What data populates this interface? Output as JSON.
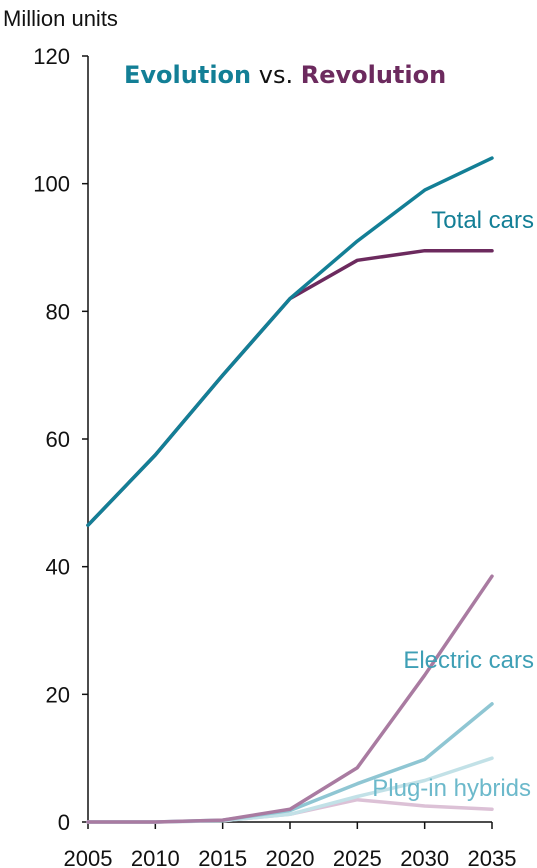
{
  "chart_data": {
    "type": "line",
    "title_parts": [
      {
        "text": "Evolution",
        "bold": true,
        "color": "#137f96"
      },
      {
        "text": " vs. ",
        "bold": false,
        "color": "#111111"
      },
      {
        "text": "Revolution",
        "bold": true,
        "color": "#6c2a5e"
      }
    ],
    "ylabel": "Million units",
    "xlabel": "",
    "x": [
      2005,
      2010,
      2015,
      2020,
      2025,
      2030,
      2035
    ],
    "ylim": [
      0,
      120
    ],
    "yticks": [
      0,
      20,
      40,
      60,
      80,
      100,
      120
    ],
    "xticks": [
      2005,
      2010,
      2015,
      2020,
      2025,
      2030,
      2035
    ],
    "grid": false,
    "series": [
      {
        "name": "Total cars",
        "color": "#137f96",
        "values": [
          46.5,
          57.5,
          70,
          82,
          91,
          99,
          104
        ]
      },
      {
        "name": "",
        "color": "#6c2a5e",
        "values": [
          46.5,
          57.5,
          70,
          82,
          88,
          89.5,
          89.5
        ]
      },
      {
        "name": "Electric cars",
        "color": "#a97ba1",
        "values": [
          0,
          0,
          0.3,
          2,
          8.5,
          23,
          38.5
        ]
      },
      {
        "name": "",
        "color": "#8fc6d3",
        "values": [
          0,
          0,
          0.3,
          1.8,
          6,
          9.8,
          18.5
        ]
      },
      {
        "name": "Plug-in hybrids",
        "color": "#c2e1e7",
        "values": [
          0,
          0,
          0.2,
          1.2,
          4,
          6.5,
          10
        ]
      },
      {
        "name": "",
        "color": "#dcc1d6",
        "values": [
          0,
          0,
          0.2,
          1.2,
          3.5,
          2.5,
          2
        ]
      }
    ],
    "annotations": [
      {
        "text": "Total cars",
        "color": "#137f96"
      },
      {
        "text": "Electric cars",
        "color": "#3e9fb5"
      },
      {
        "text": "Plug-in hybrids",
        "color": "#6cb9cb"
      }
    ]
  }
}
